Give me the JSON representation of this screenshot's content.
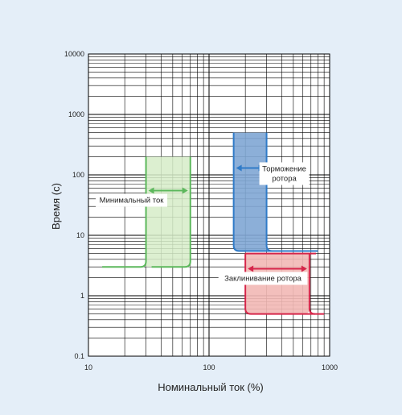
{
  "chart_data": {
    "type": "area",
    "background_color": "#e4eef8",
    "xlabel": "Номинальный ток (%)",
    "ylabel": "Время (с)",
    "x_scale": "log",
    "y_scale": "log",
    "xlim": [
      10,
      1000
    ],
    "ylim": [
      0.1,
      10000
    ],
    "x_ticks": [
      {
        "value": 10,
        "label": "10"
      },
      {
        "value": 100,
        "label": "100"
      },
      {
        "value": 1000,
        "label": "1000"
      }
    ],
    "y_ticks": [
      {
        "value": 0.1,
        "label": "0.1"
      },
      {
        "value": 1,
        "label": "1"
      },
      {
        "value": 10,
        "label": "10"
      },
      {
        "value": 100,
        "label": "100"
      },
      {
        "value": 1000,
        "label": "1000"
      },
      {
        "value": 10000,
        "label": "10000"
      }
    ],
    "grid": true,
    "regions": [
      {
        "name": "Минимальный ток",
        "color": "#5cb85c",
        "fill": "#d6ecc8",
        "x_min": 30,
        "x_max": 70,
        "y_min": 3,
        "y_max": 200,
        "curve_start_x": 13,
        "arrow_y": 55
      },
      {
        "name": "Торможение ротора",
        "color": "#2f7bc8",
        "fill": "#7fa6d4",
        "x_min": 160,
        "x_max": 300,
        "y_min": 5.5,
        "y_max": 500,
        "curve_end_x": 800,
        "arrow_y": 130
      },
      {
        "name": "Заклинивание ротора",
        "color": "#d6264a",
        "fill": "#f2b8b5",
        "x_min": 200,
        "x_max": 680,
        "y_min": 0.5,
        "y_max": 5,
        "curve_end_x": 900,
        "arrow_y": 2.8
      }
    ],
    "annotations": [
      {
        "text": "Минимальный ток",
        "region": 0
      },
      {
        "text": "Торможение",
        "region": 1
      },
      {
        "text": "ротора",
        "region": 1
      },
      {
        "text": "Заклинивание ротора",
        "region": 2
      }
    ]
  }
}
